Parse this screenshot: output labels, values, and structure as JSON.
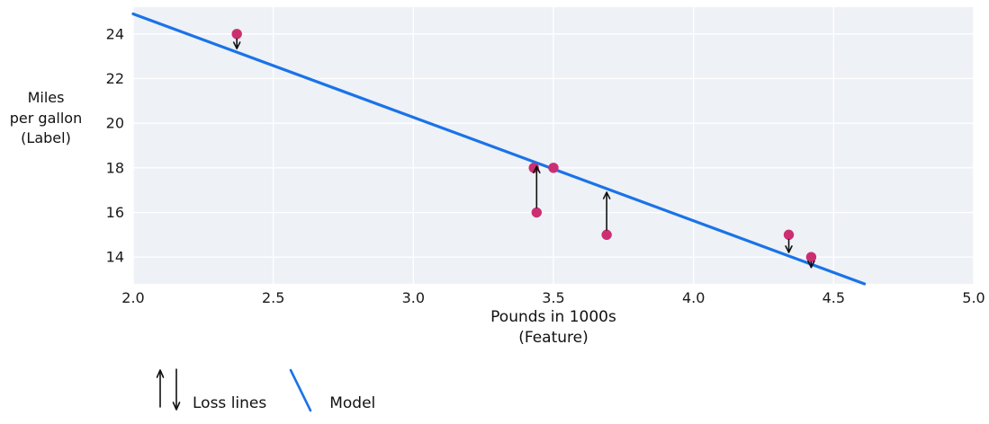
{
  "chart_data": {
    "type": "scatter",
    "title": "",
    "xlabel": "Pounds in 1000s\n(Feature)",
    "ylabel": "Miles\nper gallon\n(Label)",
    "xlim": [
      2.0,
      5.0
    ],
    "ylim": [
      12.8,
      25.2
    ],
    "xticks": [
      "2.0",
      "2.5",
      "3.0",
      "3.5",
      "4.0",
      "4.5",
      "5.0"
    ],
    "yticks": [
      "14",
      "16",
      "18",
      "20",
      "22",
      "24"
    ],
    "grid": true,
    "points": [
      {
        "x": 2.37,
        "y": 24,
        "loss_arrow": "down"
      },
      {
        "x": 3.43,
        "y": 18,
        "loss_arrow": null
      },
      {
        "x": 3.44,
        "y": 16,
        "loss_arrow": "up"
      },
      {
        "x": 3.5,
        "y": 18,
        "loss_arrow": null
      },
      {
        "x": 3.69,
        "y": 15,
        "loss_arrow": "up"
      },
      {
        "x": 4.34,
        "y": 15,
        "loss_arrow": "down"
      },
      {
        "x": 4.42,
        "y": 14,
        "loss_arrow": "down"
      }
    ],
    "model_line": {
      "x1": 2.0,
      "y1": 24.9,
      "x2": 4.61,
      "y2": 12.8
    },
    "legend": [
      {
        "label": "Loss lines",
        "marker": "loss-arrows"
      },
      {
        "label": "Model",
        "marker": "model-line"
      }
    ],
    "legend_position": "bottom-left",
    "colors": {
      "point": "#cb2f72",
      "line": "#1a73e8",
      "plot_bg": "#eef1f6",
      "grid": "#ffffff",
      "arrow": "#111111",
      "text": "#1a1a1a"
    }
  }
}
